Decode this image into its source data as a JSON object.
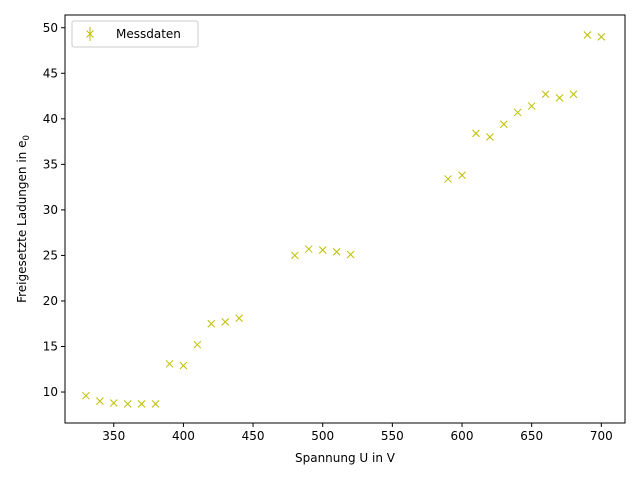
{
  "chart_data": {
    "type": "scatter",
    "xlabel": "Spannung U in V",
    "ylabel_main": "Freigesetzte Ladungen in e",
    "ylabel_subscript": "0",
    "xlim": [
      315,
      717
    ],
    "ylim": [
      6.6,
      51.4
    ],
    "xticks": [
      350,
      400,
      450,
      500,
      550,
      600,
      650,
      700
    ],
    "yticks": [
      10,
      15,
      20,
      25,
      30,
      35,
      40,
      45,
      50
    ],
    "grid": false,
    "legend_position": "top-left",
    "marker": "x",
    "series": [
      {
        "name": "Messdaten",
        "color": "#bfbf00",
        "points": [
          [
            330,
            9.6
          ],
          [
            340,
            9.0
          ],
          [
            350,
            8.8
          ],
          [
            360,
            8.7
          ],
          [
            370,
            8.7
          ],
          [
            380,
            8.7
          ],
          [
            390,
            13.1
          ],
          [
            400,
            12.9
          ],
          [
            410,
            15.2
          ],
          [
            420,
            17.5
          ],
          [
            430,
            17.7
          ],
          [
            440,
            18.1
          ],
          [
            480,
            25.0
          ],
          [
            490,
            25.7
          ],
          [
            500,
            25.6
          ],
          [
            510,
            25.4
          ],
          [
            520,
            25.1
          ],
          [
            590,
            33.4
          ],
          [
            600,
            33.8
          ],
          [
            610,
            38.4
          ],
          [
            620,
            38.0
          ],
          [
            630,
            39.4
          ],
          [
            640,
            40.7
          ],
          [
            650,
            41.4
          ],
          [
            660,
            42.7
          ],
          [
            670,
            42.3
          ],
          [
            680,
            42.7
          ],
          [
            690,
            49.2
          ],
          [
            700,
            49.0
          ]
        ]
      }
    ]
  }
}
